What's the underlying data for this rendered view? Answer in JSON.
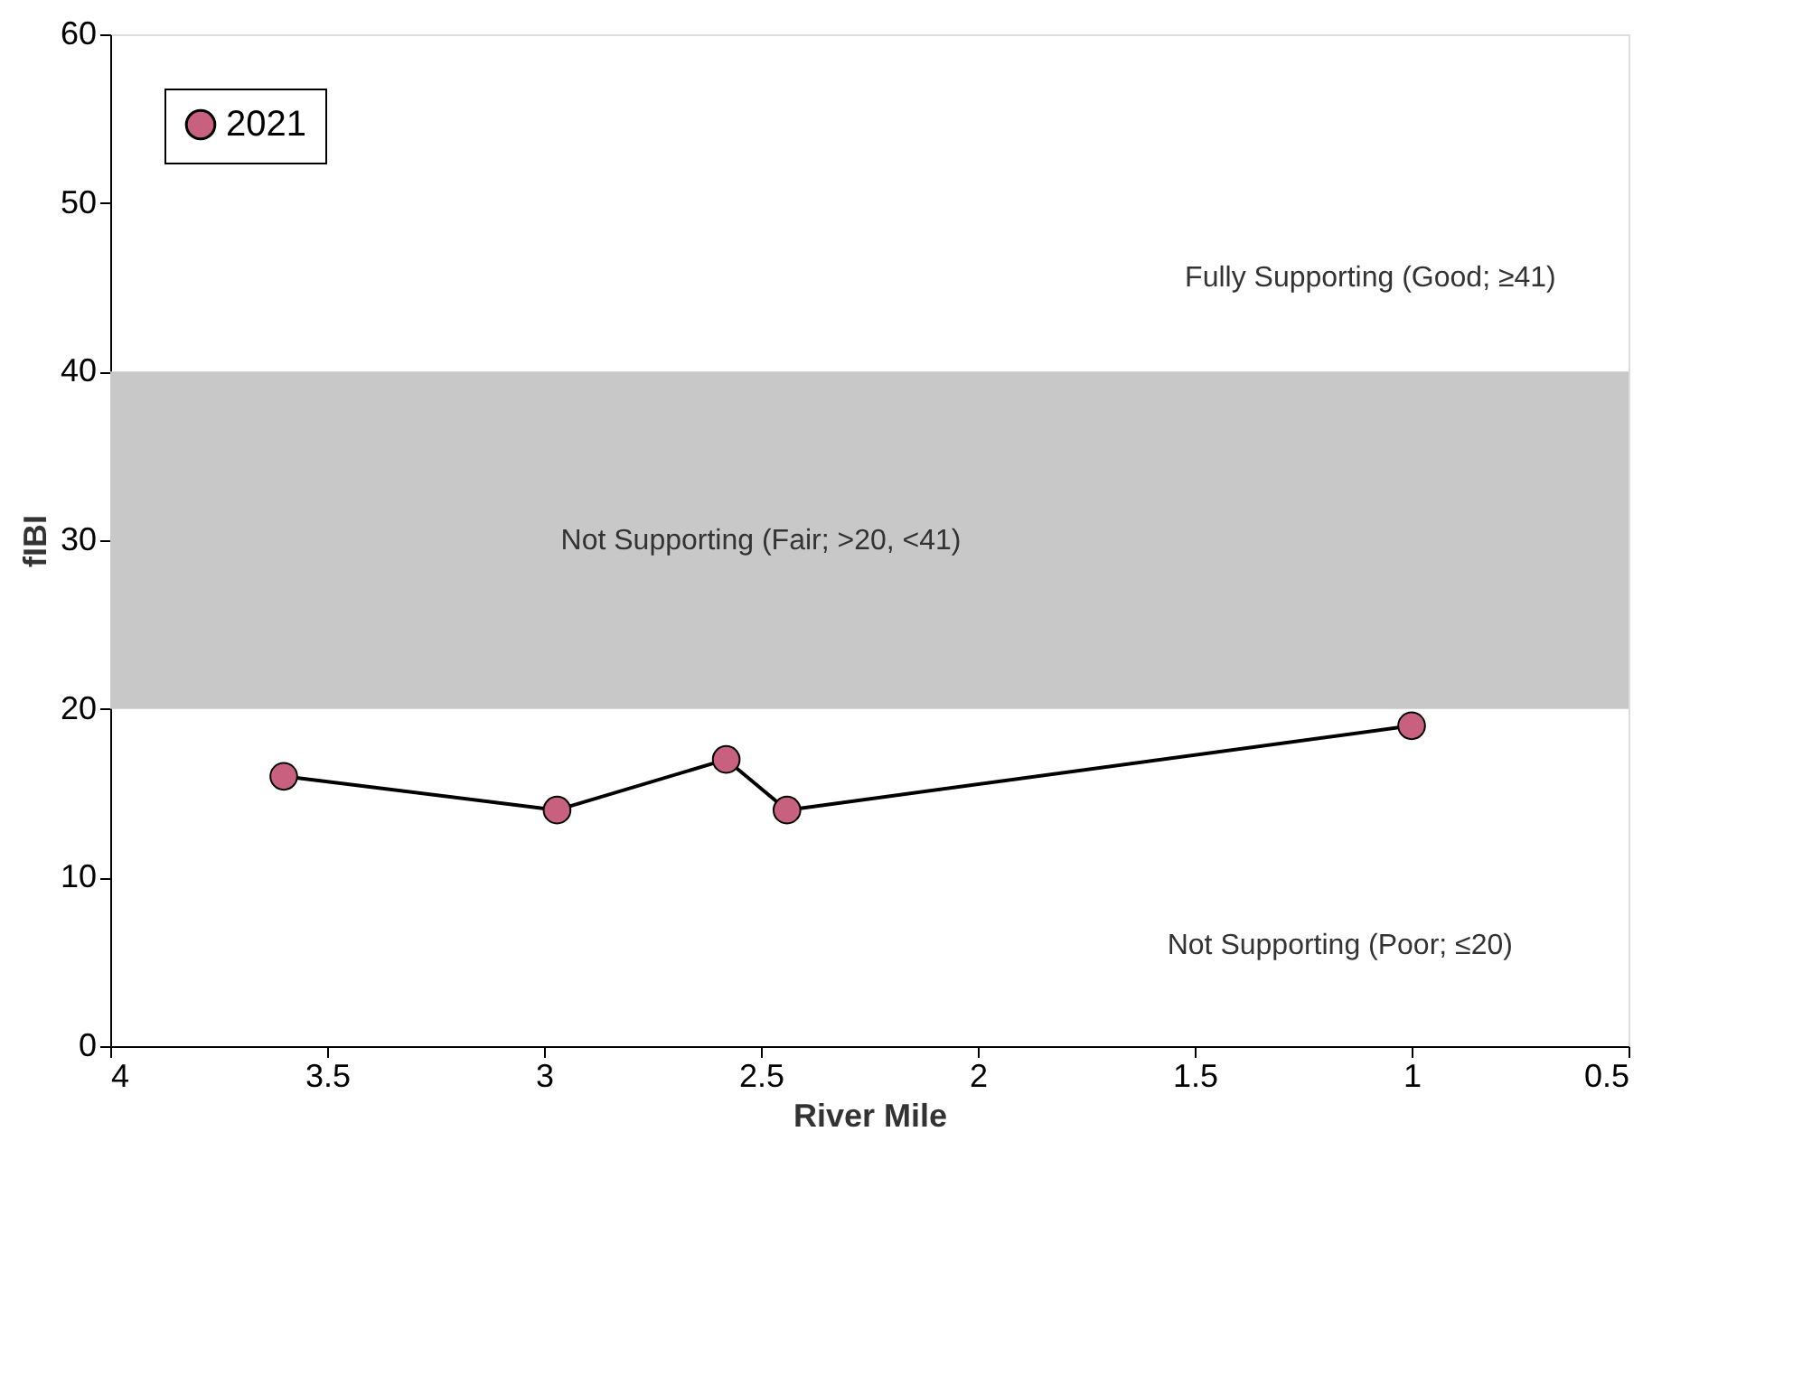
{
  "chart_data": {
    "type": "line",
    "xlabel": "River Mile",
    "ylabel": "fIBI",
    "x": [
      3.6,
      2.97,
      2.58,
      2.44,
      1.0
    ],
    "series": [
      {
        "name": "2021",
        "color": "#c8607f",
        "values": [
          16,
          14,
          17,
          14,
          19
        ]
      }
    ],
    "xlim": [
      4,
      0.5
    ],
    "xticks": [
      4,
      3.5,
      3,
      2.5,
      2,
      1.5,
      1,
      0.5
    ],
    "ylim": [
      0,
      60
    ],
    "yticks": [
      0,
      10,
      20,
      30,
      40,
      50,
      60
    ],
    "bands": [
      {
        "axis": "y",
        "from": 20,
        "to": 40,
        "color": "#c8c8c8",
        "label": "Not Supporting (Fair; >20, <41)"
      }
    ],
    "annotations": [
      "Fully Supporting (Good; ≥41)",
      "Not Supporting (Poor; ≤20)"
    ],
    "marker": "circle",
    "line_style": "solid",
    "grid": false,
    "legend": "top left"
  }
}
